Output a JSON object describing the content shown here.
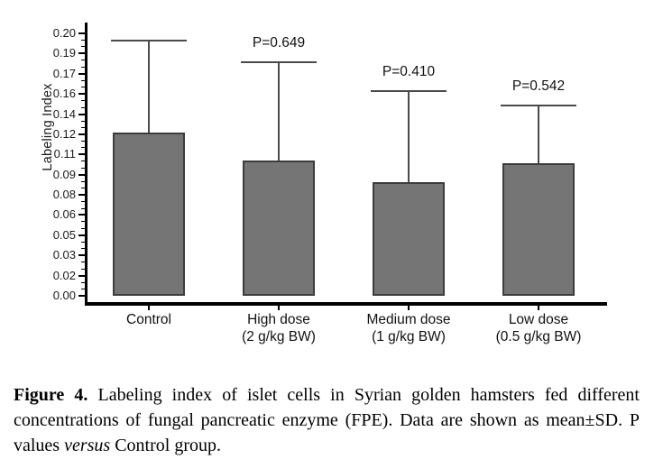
{
  "figure": {
    "background": "#ffffff",
    "bar_fill": "#757575",
    "bar_border": "#3c3c3c",
    "error_bar_color": "#4a4a4a",
    "axis_color": "#000000"
  },
  "chart_data": {
    "type": "bar",
    "title": "",
    "xlabel": "",
    "ylabel": "Labeling Index",
    "grid": false,
    "legend": "none",
    "error_bars": "upper only, mean+SD",
    "ylim": [
      0,
      0.2015
    ],
    "y_tick_labels_bottom_to_top": [
      "0.00",
      "0.02",
      "0.03",
      "0.05",
      "0.06",
      "0.08",
      "0.09",
      "0.11",
      "0.12",
      "0.14",
      "0.16",
      "0.17",
      "0.19",
      "0.20"
    ],
    "minor_ticks_between_major": 2,
    "categories": [
      "Control",
      "High dose (2 g/kg BW)",
      "Medium dose (1 g/kg BW)",
      "Low dose (0.5 g/kg BW)"
    ],
    "bars": [
      {
        "label_lines": [
          "Control"
        ],
        "mean": 0.125,
        "upper": 0.197,
        "p_label": ""
      },
      {
        "label_lines": [
          "High dose",
          "(2 g/kg BW)"
        ],
        "mean": 0.104,
        "upper": 0.18,
        "p_label": "P=0.649"
      },
      {
        "label_lines": [
          "Medium dose",
          "(1 g/kg BW)"
        ],
        "mean": 0.087,
        "upper": 0.158,
        "p_label": "P=0.410"
      },
      {
        "label_lines": [
          "Low dose",
          "(0.5 g/kg BW)"
        ],
        "mean": 0.102,
        "upper": 0.147,
        "p_label": "P=0.542"
      }
    ]
  },
  "caption": {
    "label_bold": "Figure 4.",
    "text_part1": " Labeling index of islet cells in Syrian golden hamsters fed different concentrations of fungal pancreatic enzyme (FPE). Data are shown as mean±SD. P values ",
    "italic_word": "versus",
    "text_part2": " Control group."
  }
}
